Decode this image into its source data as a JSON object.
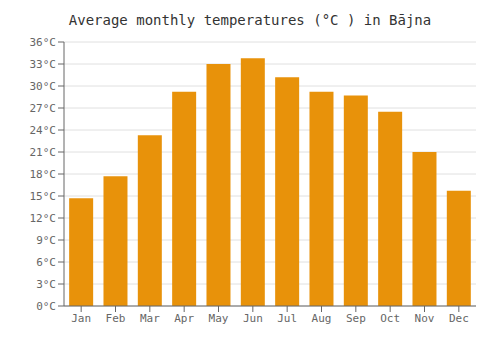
{
  "chart_data": {
    "type": "bar",
    "title": "Average monthly temperatures (°C ) in Bājna",
    "categories": [
      "Jan",
      "Feb",
      "Mar",
      "Apr",
      "May",
      "Jun",
      "Jul",
      "Aug",
      "Sep",
      "Oct",
      "Nov",
      "Dec"
    ],
    "values": [
      14.7,
      17.7,
      23.3,
      29.2,
      33.0,
      33.8,
      31.2,
      29.2,
      28.7,
      26.5,
      21.0,
      15.7
    ],
    "color": "#E8920A",
    "ylim": [
      0,
      36
    ],
    "yticks": [
      {
        "value": 0,
        "label": "0°C"
      },
      {
        "value": 3,
        "label": "3°C"
      },
      {
        "value": 6,
        "label": "6°C"
      },
      {
        "value": 9,
        "label": "9°C"
      },
      {
        "value": 12,
        "label": "12°C"
      },
      {
        "value": 15,
        "label": "15°C"
      },
      {
        "value": 18,
        "label": "18°C"
      },
      {
        "value": 21,
        "label": "21°C"
      },
      {
        "value": 24,
        "label": "24°C"
      },
      {
        "value": 27,
        "label": "27°C"
      },
      {
        "value": 30,
        "label": "30°C"
      },
      {
        "value": 33,
        "label": "33°C"
      },
      {
        "value": 36,
        "label": "36°C"
      }
    ],
    "grid": true
  }
}
